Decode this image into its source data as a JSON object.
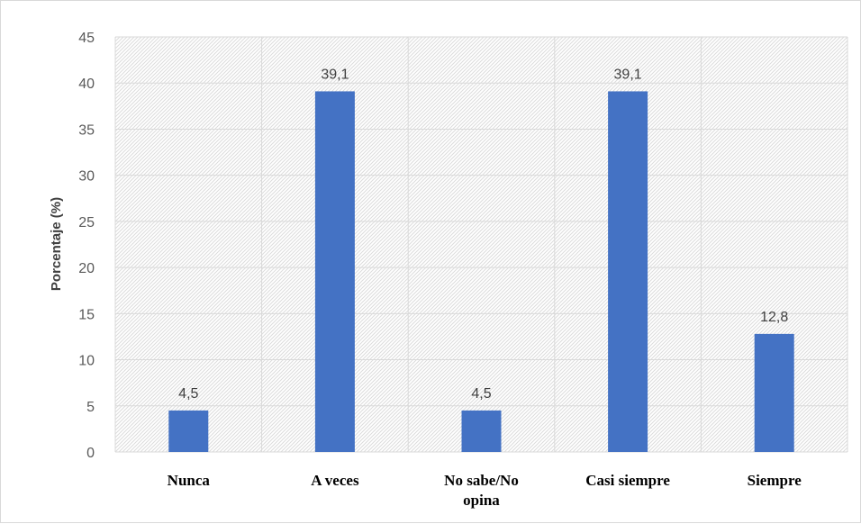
{
  "chart_data": {
    "type": "bar",
    "categories": [
      "Nunca",
      "A veces",
      "No sabe/No opina",
      "Casi siempre",
      "Siempre"
    ],
    "category_lines": [
      [
        "Nunca"
      ],
      [
        "A veces"
      ],
      [
        "No sabe/No",
        "opina"
      ],
      [
        "Casi siempre"
      ],
      [
        "Siempre"
      ]
    ],
    "values": [
      4.5,
      39.1,
      4.5,
      39.1,
      12.8
    ],
    "data_labels": [
      "4,5",
      "39,1",
      "4,5",
      "39,1",
      "12,8"
    ],
    "title": "",
    "xlabel": "",
    "ylabel": "Porcentaje (%)",
    "ylim": [
      0,
      45
    ],
    "yticks": [
      0,
      5,
      10,
      15,
      20,
      25,
      30,
      35,
      40,
      45
    ],
    "grid": true,
    "bar_color": "#4472c4",
    "grid_color": "#d9d9d9"
  }
}
